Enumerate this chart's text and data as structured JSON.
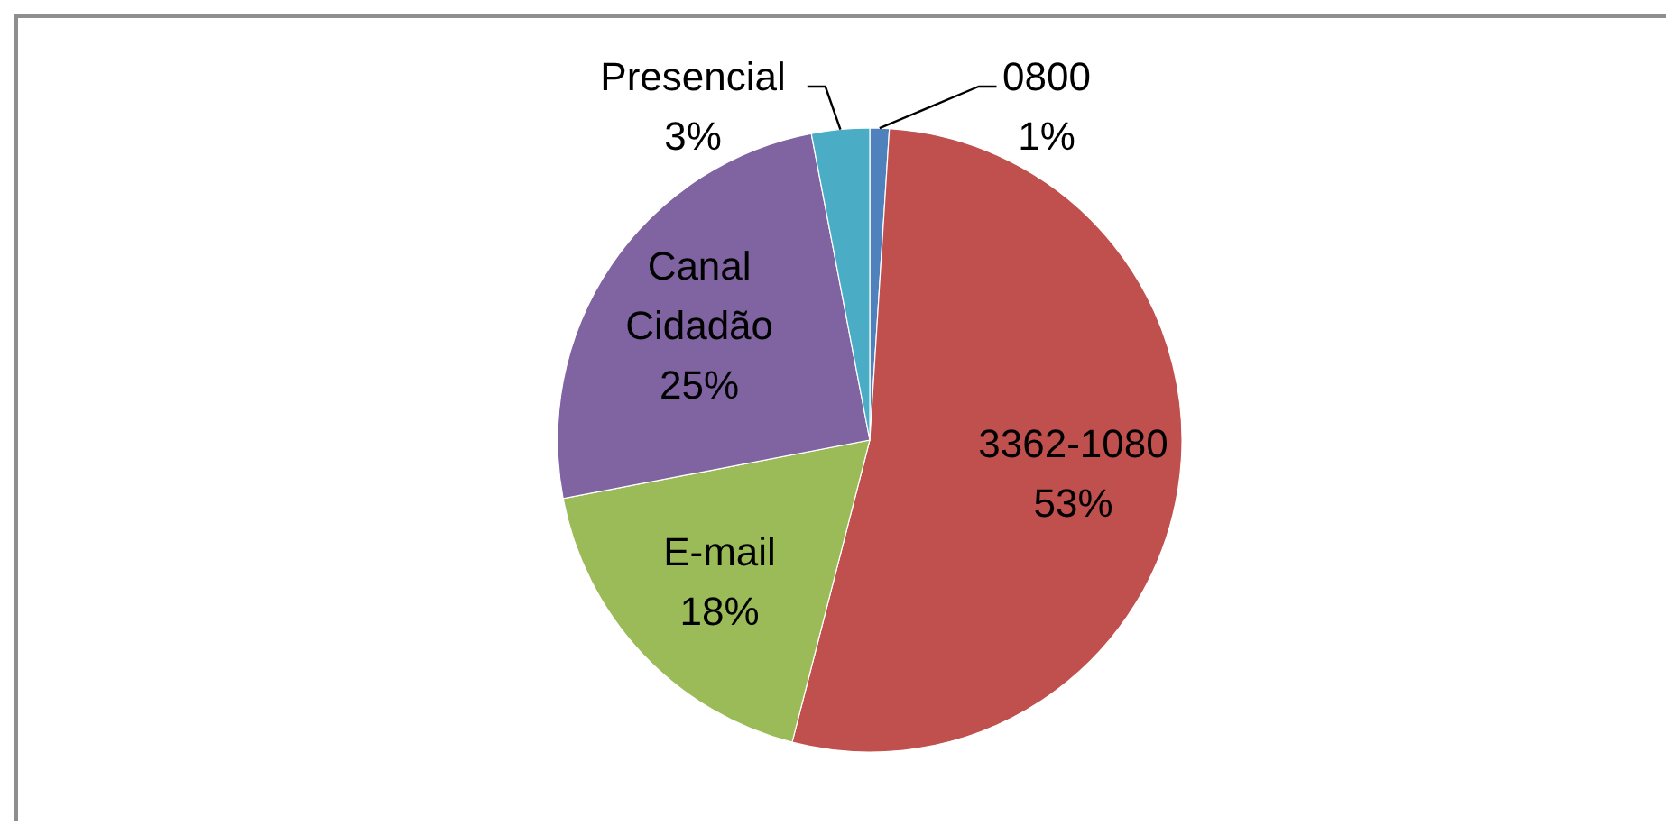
{
  "chart_data": {
    "type": "pie",
    "categories": [
      "0800",
      "3362-1080",
      "E-mail",
      "Canal Cidadão",
      "Presencial"
    ],
    "values": [
      1,
      53,
      18,
      25,
      3
    ],
    "colors": [
      "#4f81bd",
      "#c0504d",
      "#9bbb59",
      "#8064a2",
      "#4bacc6"
    ],
    "value_labels": [
      "1%",
      "53%",
      "18%",
      "25%",
      "3%"
    ]
  }
}
